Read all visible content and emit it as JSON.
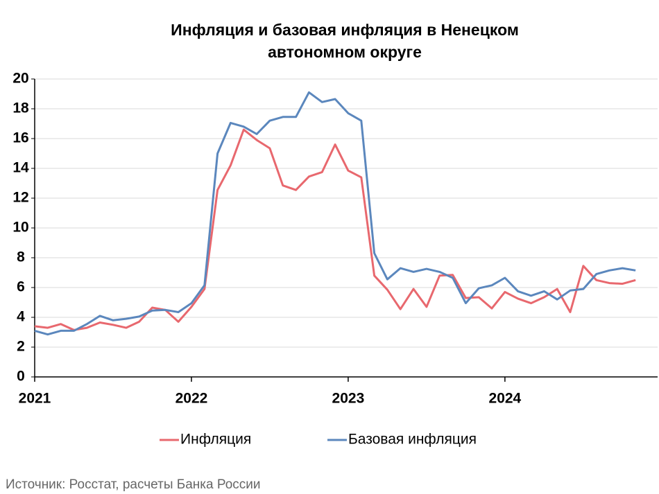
{
  "chart_data": {
    "type": "line",
    "title": [
      "Инфляция и базовая инфляция в Ненецком",
      "автономном округе"
    ],
    "source": "Источник: Росстат, расчеты Банка России",
    "categories": [
      "2021",
      null,
      null,
      null,
      null,
      null,
      null,
      null,
      null,
      null,
      null,
      null,
      "2022",
      null,
      null,
      null,
      null,
      null,
      null,
      null,
      null,
      null,
      null,
      null,
      "2023",
      null,
      null,
      null,
      null,
      null,
      null,
      null,
      null,
      null,
      null,
      null,
      "2024",
      null,
      null,
      null,
      null,
      null,
      null,
      null,
      null,
      null,
      null
    ],
    "series": [
      {
        "name": "Инфляция",
        "color": "#e8686e",
        "values": [
          3.4,
          3.3,
          3.55,
          3.15,
          3.3,
          3.65,
          3.5,
          3.3,
          3.7,
          4.65,
          4.5,
          3.7,
          4.7,
          5.9,
          12.55,
          14.2,
          16.6,
          15.9,
          15.35,
          12.85,
          12.55,
          13.45,
          13.75,
          15.6,
          13.85,
          13.4,
          6.8,
          5.85,
          4.55,
          5.9,
          4.7,
          6.8,
          6.85,
          5.3,
          5.35,
          4.6,
          5.7,
          5.25,
          4.95,
          5.35,
          5.9,
          4.35,
          7.45,
          6.5,
          6.3,
          6.25,
          6.5
        ]
      },
      {
        "name": "Базовая инфляция",
        "color": "#5b87bd",
        "values": [
          3.1,
          2.85,
          3.1,
          3.1,
          3.55,
          4.1,
          3.8,
          3.9,
          4.05,
          4.45,
          4.5,
          4.35,
          4.95,
          6.15,
          15.0,
          17.05,
          16.8,
          16.3,
          17.2,
          17.45,
          17.45,
          19.1,
          18.45,
          18.65,
          17.7,
          17.2,
          8.3,
          6.55,
          7.3,
          7.05,
          7.25,
          7.05,
          6.65,
          4.95,
          5.95,
          6.15,
          6.65,
          5.75,
          5.45,
          5.75,
          5.2,
          5.8,
          5.9,
          6.9,
          7.15,
          7.3,
          7.15
        ]
      }
    ],
    "ylim": [
      0,
      20
    ],
    "yticks": [
      0,
      2,
      4,
      6,
      8,
      10,
      12,
      14,
      16,
      18,
      20
    ],
    "grid": true
  }
}
